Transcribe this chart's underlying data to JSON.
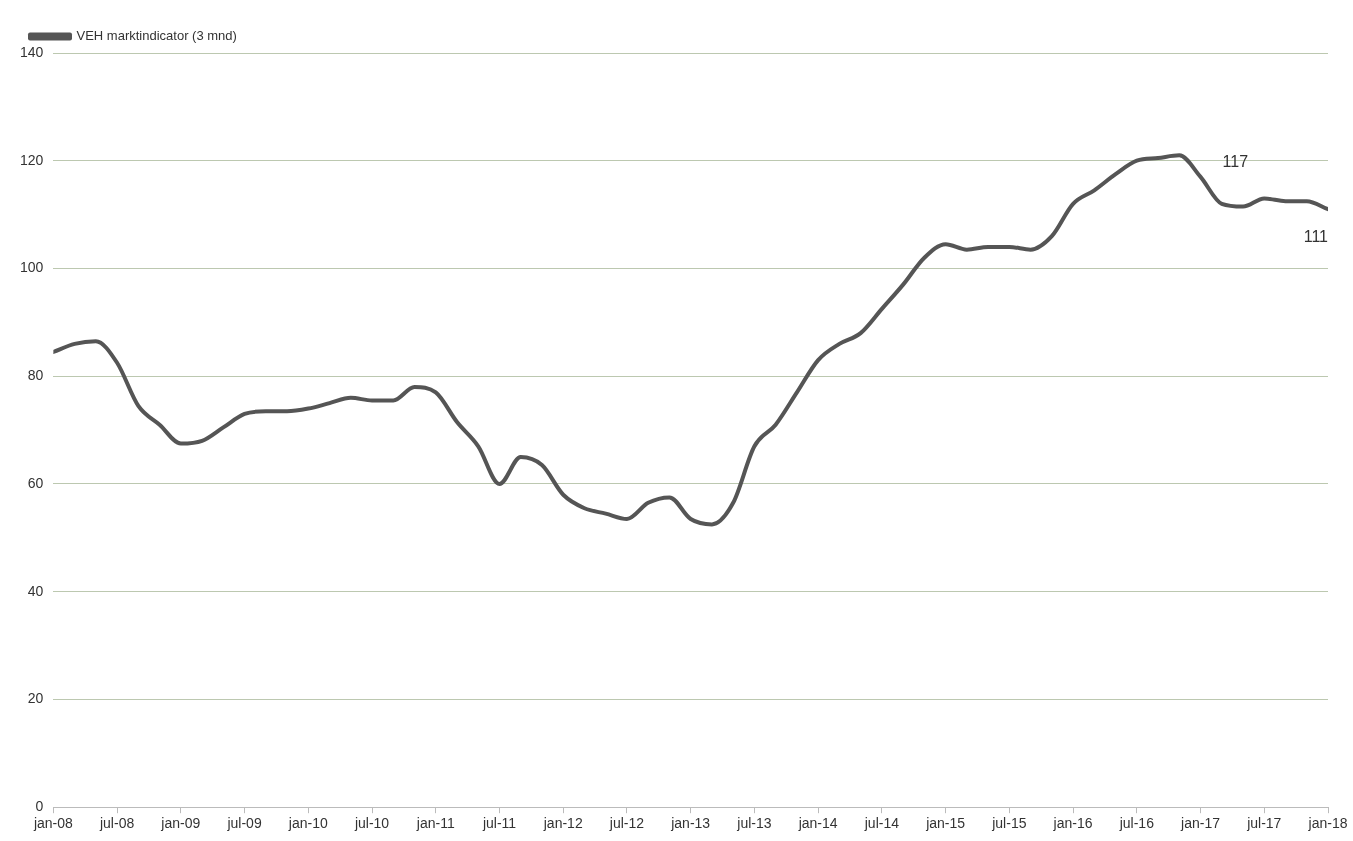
{
  "chart_data": {
    "type": "line",
    "x": [
      "2008-01",
      "2008-03",
      "2008-05",
      "2008-07",
      "2008-09",
      "2008-11",
      "2009-01",
      "2009-03",
      "2009-05",
      "2009-07",
      "2009-09",
      "2009-11",
      "2010-01",
      "2010-03",
      "2010-05",
      "2010-07",
      "2010-09",
      "2010-11",
      "2011-01",
      "2011-03",
      "2011-05",
      "2011-07",
      "2011-09",
      "2011-11",
      "2012-01",
      "2012-03",
      "2012-05",
      "2012-07",
      "2012-09",
      "2012-11",
      "2013-01",
      "2013-03",
      "2013-05",
      "2013-07",
      "2013-09",
      "2013-11",
      "2014-01",
      "2014-03",
      "2014-05",
      "2014-07",
      "2014-09",
      "2014-11",
      "2015-01",
      "2015-03",
      "2015-05",
      "2015-07",
      "2015-09",
      "2015-11",
      "2016-01",
      "2016-03",
      "2016-05",
      "2016-07",
      "2016-09",
      "2016-11",
      "2017-01",
      "2017-03",
      "2017-05",
      "2017-07",
      "2017-09",
      "2017-11",
      "2018-01"
    ],
    "series": [
      {
        "name": "VEH marktindicator (3 mnd)",
        "color": "#555555",
        "values": [
          84.5,
          86,
          86.5,
          82.5,
          74.5,
          71,
          67.5,
          68,
          70.5,
          73,
          73.5,
          73.5,
          74,
          75,
          76,
          75.5,
          75.5,
          78,
          77,
          71.5,
          67,
          60,
          65,
          63.5,
          58,
          55.5,
          54.5,
          53.5,
          56.5,
          57.5,
          53.5,
          52.5,
          56.5,
          67,
          71,
          77,
          83,
          86,
          88,
          92.5,
          97,
          102,
          104.5,
          103.5,
          104,
          104,
          103.5,
          106,
          112,
          114.5,
          117.5,
          120,
          120.5,
          121,
          117,
          112,
          111.5,
          113,
          112.5,
          112.5,
          111
        ]
      }
    ],
    "ylim": [
      0,
      140
    ],
    "yticks": [
      0,
      20,
      40,
      60,
      80,
      100,
      120,
      140
    ],
    "xlim": [
      "2008-01",
      "2018-01"
    ],
    "xticks": [
      {
        "value": "2008-01",
        "label": "jan-08"
      },
      {
        "value": "2008-07",
        "label": "jul-08"
      },
      {
        "value": "2009-01",
        "label": "jan-09"
      },
      {
        "value": "2009-07",
        "label": "jul-09"
      },
      {
        "value": "2010-01",
        "label": "jan-10"
      },
      {
        "value": "2010-07",
        "label": "jul-10"
      },
      {
        "value": "2011-01",
        "label": "jan-11"
      },
      {
        "value": "2011-07",
        "label": "jul-11"
      },
      {
        "value": "2012-01",
        "label": "jan-12"
      },
      {
        "value": "2012-07",
        "label": "jul-12"
      },
      {
        "value": "2013-01",
        "label": "jan-13"
      },
      {
        "value": "2013-07",
        "label": "jul-13"
      },
      {
        "value": "2014-01",
        "label": "jan-14"
      },
      {
        "value": "2014-07",
        "label": "jul-14"
      },
      {
        "value": "2015-01",
        "label": "jan-15"
      },
      {
        "value": "2015-07",
        "label": "jul-15"
      },
      {
        "value": "2016-01",
        "label": "jan-16"
      },
      {
        "value": "2016-07",
        "label": "jul-16"
      },
      {
        "value": "2017-01",
        "label": "jan-17"
      },
      {
        "value": "2017-07",
        "label": "jul-17"
      },
      {
        "value": "2018-01",
        "label": "jan-18"
      }
    ],
    "annotations": [
      {
        "text": "117",
        "x": "2017-01",
        "y": 117
      },
      {
        "text": "111",
        "x": "2018-01",
        "y": 111
      }
    ],
    "grid": "y",
    "legend": "top left",
    "marker": "none",
    "line_style": "solid"
  }
}
